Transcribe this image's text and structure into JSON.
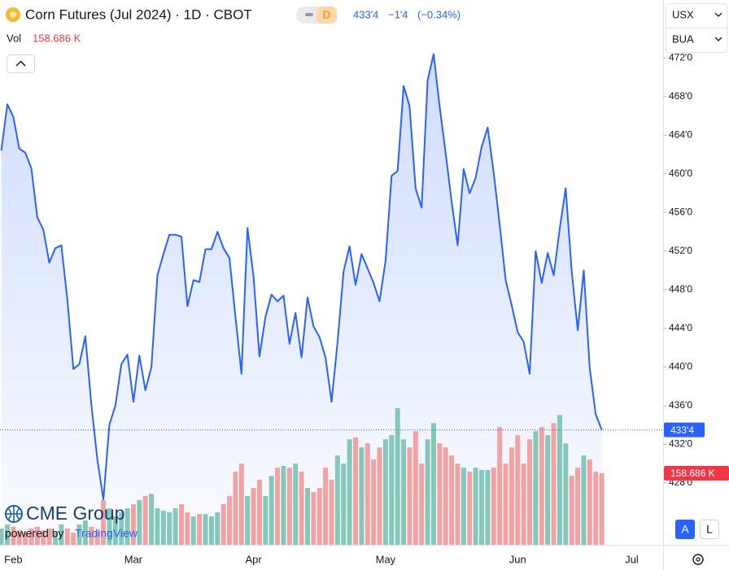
{
  "header": {
    "title": "Corn Futures (Jul 2024) · 1D · CBOT",
    "badge": "D",
    "change": "−1'4",
    "change_pct": "(−0.34%)",
    "volume_label": "Vol"
  },
  "controls": {
    "currency": "USX",
    "unit": "BUA",
    "auto": "A",
    "log": "L"
  },
  "branding": {
    "logo": "CME Group",
    "powered_by": "powered by",
    "platform": "TradingView"
  },
  "chart_data": {
    "type": "line",
    "categories": [
      null,
      null,
      "Feb",
      null,
      null,
      null,
      null,
      null,
      null,
      null,
      null,
      null,
      null,
      null,
      null,
      null,
      null,
      null,
      null,
      null,
      null,
      null,
      "Mar",
      null,
      null,
      null,
      null,
      null,
      null,
      null,
      null,
      null,
      null,
      null,
      null,
      null,
      null,
      null,
      null,
      null,
      null,
      null,
      "Apr",
      null,
      null,
      null,
      null,
      null,
      null,
      null,
      null,
      null,
      null,
      null,
      null,
      null,
      null,
      null,
      null,
      null,
      null,
      null,
      null,
      null,
      "May",
      null,
      null,
      null,
      null,
      null,
      null,
      null,
      null,
      null,
      null,
      null,
      null,
      null,
      null,
      null,
      null,
      null,
      null,
      null,
      null,
      null,
      "Jun",
      null,
      null,
      null,
      null,
      null,
      null,
      null,
      null,
      null,
      null,
      null,
      null,
      null,
      null,
      null,
      null,
      null,
      null,
      "Jul"
    ],
    "series": [
      {
        "type": "line",
        "color": "#2962ff",
        "values": [
          462.4,
          467.2,
          465.9,
          462.6,
          462.2,
          460.6,
          455.5,
          454.2,
          450.8,
          452.3,
          452.6,
          447.0,
          439.8,
          440.3,
          443.2,
          436.1,
          430.4,
          426.3,
          434.0,
          436.0,
          440.3,
          441.3,
          436.4,
          441.2,
          437.6,
          440.0,
          449.5,
          451.7,
          453.7,
          453.7,
          453.5,
          446.3,
          449.0,
          448.8,
          452.2,
          452.2,
          454.0,
          452.3,
          451.3,
          445.2,
          439.3,
          454.4,
          449.4,
          441.1,
          445.2,
          447.5,
          446.8,
          447.4,
          442.4,
          445.6,
          441.0,
          447.2,
          444.2,
          443.1,
          441.0,
          436.4,
          442.6,
          449.9,
          452.5,
          448.5,
          451.7,
          450.2,
          448.7,
          446.8,
          451.0,
          459.8,
          460.3,
          469.1,
          467.0,
          458.5,
          456.5,
          469.7,
          472.4,
          467.0,
          462.2,
          457.1,
          452.6,
          460.5,
          458.0,
          459.6,
          462.8,
          464.8,
          460.1,
          454.8,
          449.0,
          446.4,
          443.6,
          442.6,
          439.3,
          452.0,
          448.7,
          451.8,
          449.5,
          454.3,
          458.5,
          449.9,
          443.8,
          450.0,
          439.9,
          435.1,
          433.5,
          null,
          null,
          null,
          null,
          null
        ],
        "value_labels": [
          null,
          null,
          null,
          null,
          null,
          null,
          null,
          null,
          null,
          null,
          null,
          null,
          null,
          null,
          null,
          null,
          null,
          null,
          null,
          null,
          null,
          null,
          null,
          null,
          null,
          null,
          null,
          null,
          null,
          null,
          null,
          null,
          null,
          null,
          null,
          null,
          null,
          null,
          null,
          null,
          null,
          null,
          null,
          null,
          null,
          null,
          null,
          null,
          null,
          null,
          null,
          null,
          null,
          null,
          null,
          null,
          null,
          null,
          null,
          null,
          null,
          null,
          null,
          null,
          null,
          null,
          null,
          null,
          null,
          null,
          null,
          null,
          null,
          null,
          null,
          null,
          null,
          null,
          null,
          null,
          null,
          null,
          null,
          null,
          null,
          null,
          null,
          null,
          null,
          null,
          null,
          null,
          null,
          null,
          null,
          null,
          null,
          null,
          null,
          null,
          "433'4",
          null,
          null,
          null,
          null,
          null
        ]
      },
      {
        "type": "volume",
        "up_color": "#84c8b9",
        "down_color": "#f2a2a2",
        "values": [
          36,
          45,
          40,
          32,
          27,
          36,
          40,
          32,
          36,
          29,
          45,
          36,
          27,
          45,
          54,
          40,
          32,
          99,
          81,
          63,
          72,
          81,
          90,
          99,
          108,
          113,
          81,
          76,
          72,
          81,
          90,
          72,
          63,
          68,
          68,
          63,
          72,
          90,
          108,
          162,
          180,
          108,
          126,
          144,
          108,
          153,
          171,
          175,
          171,
          180,
          162,
          126,
          117,
          126,
          171,
          144,
          198,
          180,
          234,
          238,
          216,
          225,
          189,
          216,
          234,
          243,
          303,
          234,
          216,
          252,
          180,
          234,
          270,
          225,
          216,
          198,
          180,
          171,
          162,
          171,
          166,
          166,
          171,
          261,
          180,
          216,
          243,
          180,
          234,
          252,
          261,
          243,
          270,
          288,
          225,
          153,
          171,
          198,
          189,
          162,
          158.686,
          null,
          null,
          null,
          null,
          null
        ],
        "value_labels": [
          null,
          null,
          null,
          null,
          null,
          null,
          null,
          null,
          null,
          null,
          null,
          null,
          null,
          null,
          null,
          null,
          null,
          null,
          null,
          null,
          null,
          null,
          null,
          null,
          null,
          null,
          null,
          null,
          null,
          null,
          null,
          null,
          null,
          null,
          null,
          null,
          null,
          null,
          null,
          null,
          null,
          null,
          null,
          null,
          null,
          null,
          null,
          null,
          null,
          null,
          null,
          null,
          null,
          null,
          null,
          null,
          null,
          null,
          null,
          null,
          null,
          null,
          null,
          null,
          null,
          null,
          null,
          null,
          null,
          null,
          null,
          null,
          null,
          null,
          null,
          null,
          null,
          null,
          null,
          null,
          null,
          null,
          null,
          null,
          null,
          null,
          null,
          null,
          null,
          null,
          null,
          null,
          null,
          null,
          null,
          null,
          null,
          null,
          null,
          null,
          "158.686 K",
          null,
          null,
          null,
          null,
          null
        ]
      }
    ],
    "ylim": [
      421.6,
      478
    ],
    "vlim": [
      0,
      1208
    ],
    "yticks": [
      {
        "value": 428,
        "label": "428'0"
      },
      {
        "value": 432,
        "label": "432'0"
      },
      {
        "value": 436,
        "label": "436'0"
      },
      {
        "value": 440,
        "label": "440'0"
      },
      {
        "value": 444,
        "label": "444'0"
      },
      {
        "value": 448,
        "label": "448'0"
      },
      {
        "value": 452,
        "label": "452'0"
      },
      {
        "value": 456,
        "label": "456'0"
      },
      {
        "value": 460,
        "label": "460'0"
      },
      {
        "value": 464,
        "label": "464'0"
      },
      {
        "value": 468,
        "label": "468'0"
      },
      {
        "value": 472,
        "label": "472'0"
      }
    ],
    "grid": false
  }
}
